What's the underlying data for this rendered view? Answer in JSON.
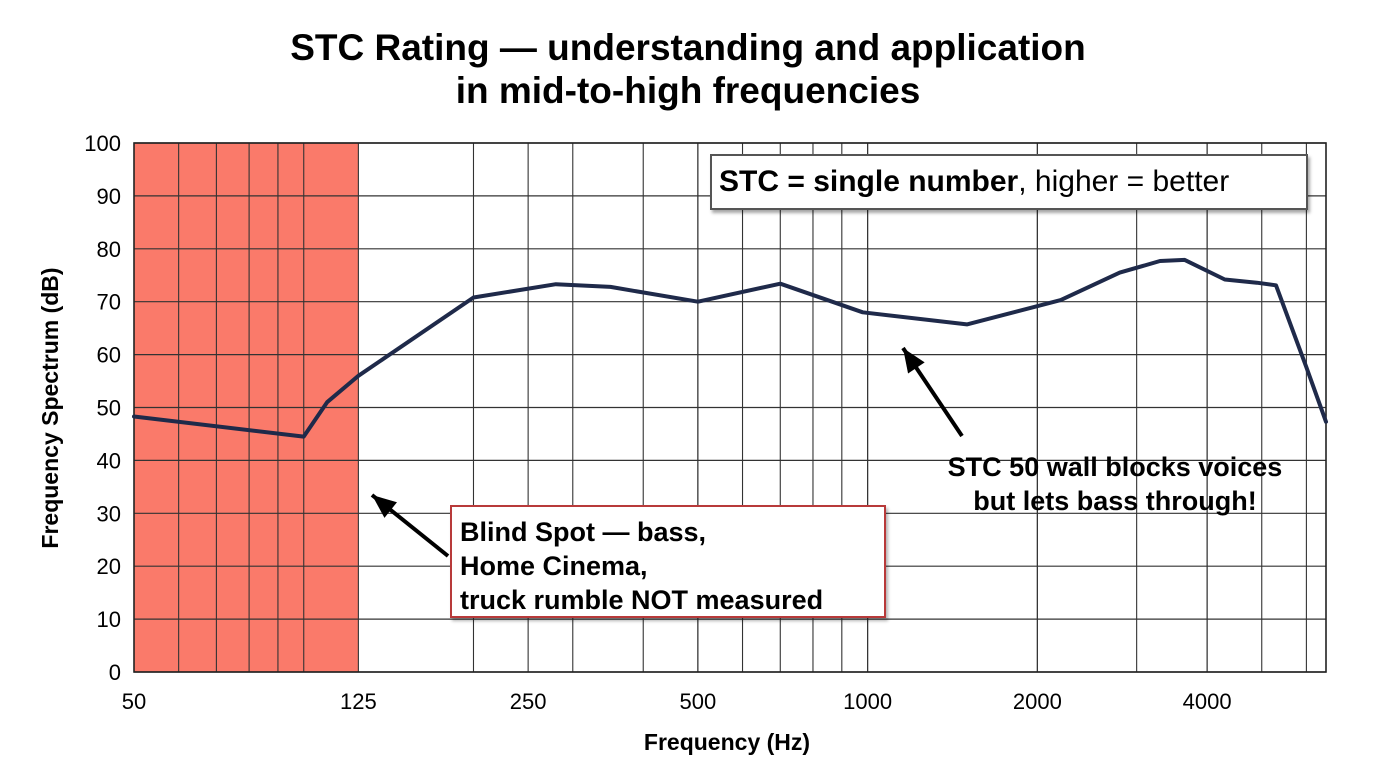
{
  "title_lines": [
    "STC Rating — understanding and application",
    "in mid-to-high frequencies"
  ],
  "chart_data": {
    "type": "line",
    "title": "STC Rating — understanding and application in mid-to-high frequencies",
    "xlabel": "Frequency (Hz)",
    "ylabel": "Frequency Spectrum (dB)",
    "x_scale": "log",
    "xlim": [
      50,
      6500
    ],
    "ylim": [
      0,
      100
    ],
    "x_ticks": [
      50,
      125,
      250,
      500,
      1000,
      2000,
      4000
    ],
    "y_ticks": [
      0,
      10,
      20,
      30,
      40,
      50,
      60,
      70,
      80,
      90,
      100
    ],
    "grid": true,
    "shaded_region": {
      "x_range": [
        50,
        125
      ],
      "color": "#fa7a6a"
    },
    "series": [
      {
        "color": "#1f2a4a",
        "points": [
          [
            50,
            48.3
          ],
          [
            100,
            44.5
          ],
          [
            110,
            51
          ],
          [
            125,
            56
          ],
          [
            200,
            70.8
          ],
          [
            280,
            73.3
          ],
          [
            350,
            72.8
          ],
          [
            500,
            70
          ],
          [
            700,
            73.4
          ],
          [
            980,
            68
          ],
          [
            1500,
            65.7
          ],
          [
            2200,
            70.3
          ],
          [
            2800,
            75.5
          ],
          [
            3300,
            77.7
          ],
          [
            3650,
            77.9
          ],
          [
            4300,
            74.2
          ],
          [
            4900,
            73.6
          ],
          [
            5300,
            73.1
          ],
          [
            6000,
            57.6
          ],
          [
            6500,
            47.3
          ]
        ]
      }
    ],
    "annotations": {
      "stc_box": {
        "bold": "STC = single number",
        "rest": ", higher = better"
      },
      "blind_spot": [
        "Blind Spot — bass,",
        "Home Cinema,",
        "truck rumble NOT measured"
      ],
      "voice_note": [
        "STC 50 wall blocks voices",
        "but lets bass through!"
      ]
    }
  }
}
